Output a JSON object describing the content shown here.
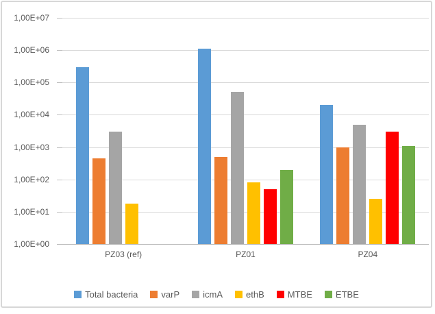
{
  "chart_data": {
    "type": "bar",
    "title": "",
    "y_scale": "log10",
    "y_range": [
      1,
      10000000
    ],
    "y_tick_labels_top_to_bottom": [
      "1,00E+07",
      "1,00E+06",
      "1,00E+05",
      "1,00E+04",
      "1,00E+03",
      "1,00E+02",
      "1,00E+01",
      "1,00E+00"
    ],
    "categories": [
      "PZ03 (ref)",
      "PZ01",
      "PZ04"
    ],
    "series": [
      {
        "name": "Total bacteria",
        "color": "#5B9BD5",
        "values": [
          300000,
          1100000,
          20000
        ]
      },
      {
        "name": "varP",
        "color": "#ED7D31",
        "values": [
          450,
          500,
          1000
        ]
      },
      {
        "name": "icmA",
        "color": "#A5A5A5",
        "values": [
          3000,
          50000,
          5000
        ]
      },
      {
        "name": "ethB",
        "color": "#FFC000",
        "values": [
          18,
          80,
          25
        ]
      },
      {
        "name": "MTBE",
        "color": "#FF0000",
        "values": [
          null,
          50,
          3000
        ]
      },
      {
        "name": "ETBE",
        "color": "#70AD47",
        "values": [
          null,
          200,
          1100
        ]
      }
    ],
    "legend_position": "bottom",
    "gridlines": true
  },
  "style_colors": {
    "text": "#595959",
    "gridline": "#D9D9D9",
    "axis_line": "#BFBFBF",
    "frame_border": "#D7D7D7",
    "background": "#FFFFFF"
  }
}
